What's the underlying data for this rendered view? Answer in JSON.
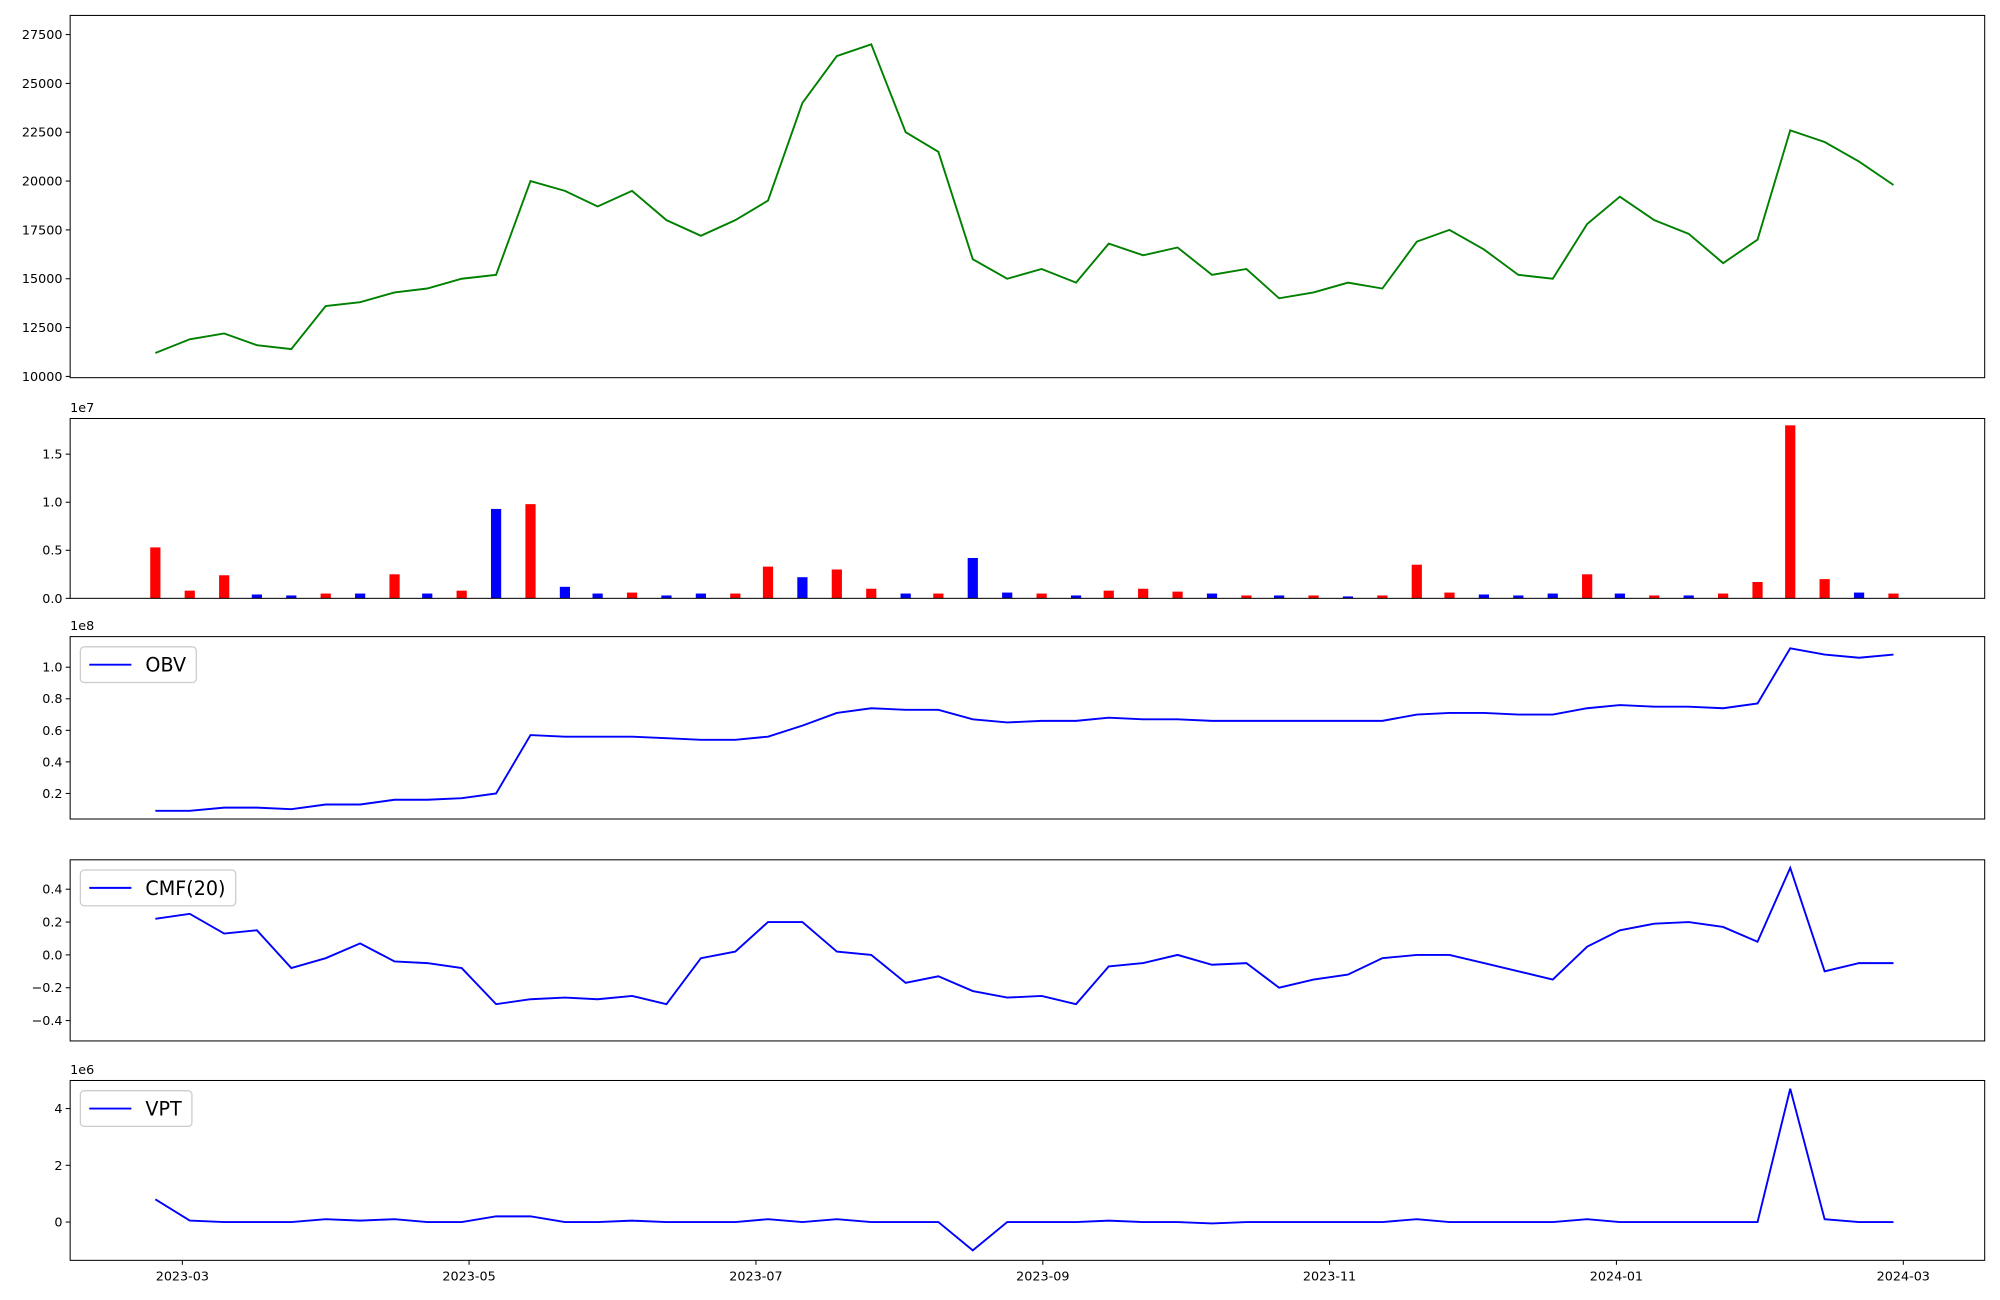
{
  "chart_data": [
    {
      "type": "line",
      "x": [
        2023.151,
        2023.171,
        2023.191,
        2023.21,
        2023.23,
        2023.25,
        2023.27,
        2023.29,
        2023.309,
        2023.329,
        2023.349,
        2023.369,
        2023.389,
        2023.408,
        2023.428,
        2023.448,
        2023.468,
        2023.488,
        2023.507,
        2023.527,
        2023.547,
        2023.567,
        2023.587,
        2023.606,
        2023.626,
        2023.646,
        2023.666,
        2023.686,
        2023.705,
        2023.725,
        2023.745,
        2023.765,
        2023.785,
        2023.804,
        2023.824,
        2023.844,
        2023.864,
        2023.884,
        2023.903,
        2023.923,
        2023.943,
        2023.963,
        2023.983,
        2024.002,
        2024.022,
        2024.042,
        2024.062,
        2024.082,
        2024.101,
        2024.121,
        2024.141,
        2024.161
      ],
      "series": [
        {
          "color": "green",
          "values": [
            11200,
            11900,
            12200,
            11600,
            11400,
            13600,
            13800,
            14300,
            14500,
            15000,
            15200,
            20000,
            19500,
            18700,
            19500,
            18000,
            17200,
            18000,
            19000,
            24000,
            26400,
            27000,
            22500,
            21500,
            16000,
            15000,
            15500,
            14800,
            16800,
            16200,
            16600,
            15200,
            15500,
            14000,
            14300,
            14800,
            14500,
            16900,
            17500,
            16500,
            15200,
            15000,
            17800,
            19200,
            18000,
            17300,
            15800,
            17000,
            22600,
            22000,
            21000,
            19800
          ]
        }
      ],
      "xlim": [
        2023.1015,
        2024.214
      ],
      "ylim": [
        9935,
        28480
      ],
      "yticks": [
        10000,
        12500,
        15000,
        17500,
        20000,
        22500,
        25000,
        27500
      ]
    },
    {
      "type": "bar",
      "x": [
        2023.151,
        2023.171,
        2023.191,
        2023.21,
        2023.23,
        2023.25,
        2023.27,
        2023.29,
        2023.309,
        2023.329,
        2023.349,
        2023.369,
        2023.389,
        2023.408,
        2023.428,
        2023.448,
        2023.468,
        2023.488,
        2023.507,
        2023.527,
        2023.547,
        2023.567,
        2023.587,
        2023.606,
        2023.626,
        2023.646,
        2023.666,
        2023.686,
        2023.705,
        2023.725,
        2023.745,
        2023.765,
        2023.785,
        2023.804,
        2023.824,
        2023.844,
        2023.864,
        2023.884,
        2023.903,
        2023.923,
        2023.943,
        2023.963,
        2023.983,
        2024.002,
        2024.022,
        2024.042,
        2024.062,
        2024.082,
        2024.101,
        2024.121,
        2024.141,
        2024.161
      ],
      "values": [
        0.53,
        0.08,
        0.24,
        0.04,
        0.03,
        0.05,
        0.05,
        0.25,
        0.05,
        0.08,
        0.93,
        0.98,
        0.12,
        0.05,
        0.06,
        0.03,
        0.05,
        0.05,
        0.33,
        0.22,
        0.3,
        0.1,
        0.05,
        0.05,
        0.42,
        0.06,
        0.05,
        0.03,
        0.08,
        0.1,
        0.07,
        0.05,
        0.03,
        0.03,
        0.03,
        0.02,
        0.03,
        0.35,
        0.06,
        0.04,
        0.03,
        0.05,
        0.25,
        0.05,
        0.03,
        0.03,
        0.05,
        0.17,
        1.8,
        0.2,
        0.06,
        0.05
      ],
      "colors": [
        "red",
        "red",
        "red",
        "blue",
        "blue",
        "red",
        "blue",
        "red",
        "blue",
        "red",
        "blue",
        "red",
        "blue",
        "blue",
        "red",
        "blue",
        "blue",
        "red",
        "red",
        "blue",
        "red",
        "red",
        "blue",
        "red",
        "blue",
        "blue",
        "red",
        "blue",
        "red",
        "red",
        "red",
        "blue",
        "red",
        "blue",
        "red",
        "blue",
        "red",
        "red",
        "red",
        "blue",
        "blue",
        "blue",
        "red",
        "blue",
        "red",
        "blue",
        "red",
        "red",
        "red",
        "red",
        "blue",
        "red"
      ],
      "offset_label": "1e7",
      "xlim": [
        2023.1015,
        2024.214
      ],
      "ylim": [
        0,
        1.871
      ],
      "yticks": [
        {
          "value": 0,
          "label": "0.0"
        },
        0.5,
        {
          "value": 1,
          "label": "1.0"
        },
        1.5
      ]
    },
    {
      "type": "line",
      "x": [
        2023.151,
        2023.171,
        2023.191,
        2023.21,
        2023.23,
        2023.25,
        2023.27,
        2023.29,
        2023.309,
        2023.329,
        2023.349,
        2023.369,
        2023.389,
        2023.408,
        2023.428,
        2023.448,
        2023.468,
        2023.488,
        2023.507,
        2023.527,
        2023.547,
        2023.567,
        2023.587,
        2023.606,
        2023.626,
        2023.646,
        2023.666,
        2023.686,
        2023.705,
        2023.725,
        2023.745,
        2023.765,
        2023.785,
        2023.804,
        2023.824,
        2023.844,
        2023.864,
        2023.884,
        2023.903,
        2023.923,
        2023.943,
        2023.963,
        2023.983,
        2024.002,
        2024.022,
        2024.042,
        2024.062,
        2024.082,
        2024.101,
        2024.121,
        2024.141,
        2024.161
      ],
      "series": [
        {
          "name": "OBV",
          "color": "blue",
          "values": [
            0.09,
            0.09,
            0.11,
            0.11,
            0.1,
            0.13,
            0.13,
            0.16,
            0.16,
            0.17,
            0.2,
            0.57,
            0.56,
            0.56,
            0.56,
            0.55,
            0.54,
            0.54,
            0.56,
            0.63,
            0.71,
            0.74,
            0.73,
            0.73,
            0.67,
            0.65,
            0.66,
            0.66,
            0.68,
            0.67,
            0.67,
            0.66,
            0.66,
            0.66,
            0.66,
            0.66,
            0.66,
            0.7,
            0.71,
            0.71,
            0.7,
            0.7,
            0.74,
            0.76,
            0.75,
            0.75,
            0.74,
            0.77,
            1.12,
            1.08,
            1.06,
            1.08
          ]
        }
      ],
      "offset_label": "1e8",
      "legend": "upper left",
      "xlim": [
        2023.1015,
        2024.214
      ],
      "ylim": [
        0.038,
        1.194
      ],
      "yticks": [
        0.2,
        0.4,
        0.6,
        0.8,
        {
          "value": 1,
          "label": "1.0"
        }
      ]
    },
    {
      "type": "line",
      "x": [
        2023.151,
        2023.171,
        2023.191,
        2023.21,
        2023.23,
        2023.25,
        2023.27,
        2023.29,
        2023.309,
        2023.329,
        2023.349,
        2023.369,
        2023.389,
        2023.408,
        2023.428,
        2023.448,
        2023.468,
        2023.488,
        2023.507,
        2023.527,
        2023.547,
        2023.567,
        2023.587,
        2023.606,
        2023.626,
        2023.646,
        2023.666,
        2023.686,
        2023.705,
        2023.725,
        2023.745,
        2023.765,
        2023.785,
        2023.804,
        2023.824,
        2023.844,
        2023.864,
        2023.884,
        2023.903,
        2023.923,
        2023.943,
        2023.963,
        2023.983,
        2024.002,
        2024.022,
        2024.042,
        2024.062,
        2024.082,
        2024.101,
        2024.121,
        2024.141,
        2024.161
      ],
      "series": [
        {
          "name": "CMF(20)",
          "color": "blue",
          "values": [
            0.22,
            0.25,
            0.13,
            0.15,
            -0.08,
            -0.02,
            0.07,
            -0.04,
            -0.05,
            -0.08,
            -0.3,
            -0.27,
            -0.26,
            -0.27,
            -0.25,
            -0.3,
            -0.02,
            0.02,
            0.2,
            0.2,
            0.02,
            0,
            -0.17,
            -0.13,
            -0.22,
            -0.26,
            -0.25,
            -0.3,
            -0.07,
            -0.05,
            0,
            -0.06,
            -0.05,
            -0.2,
            -0.15,
            -0.12,
            -0.02,
            0,
            0,
            -0.05,
            -0.1,
            -0.15,
            0.05,
            0.15,
            0.19,
            0.2,
            0.17,
            0.08,
            0.53,
            -0.1,
            -0.05,
            -0.05
          ]
        }
      ],
      "legend": "upper left",
      "xlim": [
        2023.1015,
        2024.214
      ],
      "ylim": [
        -0.524,
        0.579
      ],
      "yticks": [
        {
          "value": -0.4,
          "label": "−0.4"
        },
        {
          "value": -0.2,
          "label": "−0.2"
        },
        {
          "value": 0,
          "label": "0.0"
        },
        0.2,
        0.4
      ]
    },
    {
      "type": "line",
      "x": [
        2023.151,
        2023.171,
        2023.191,
        2023.21,
        2023.23,
        2023.25,
        2023.27,
        2023.29,
        2023.309,
        2023.329,
        2023.349,
        2023.369,
        2023.389,
        2023.408,
        2023.428,
        2023.448,
        2023.468,
        2023.488,
        2023.507,
        2023.527,
        2023.547,
        2023.567,
        2023.587,
        2023.606,
        2023.626,
        2023.646,
        2023.666,
        2023.686,
        2023.705,
        2023.725,
        2023.745,
        2023.765,
        2023.785,
        2023.804,
        2023.824,
        2023.844,
        2023.864,
        2023.884,
        2023.903,
        2023.923,
        2023.943,
        2023.963,
        2023.983,
        2024.002,
        2024.022,
        2024.042,
        2024.062,
        2024.082,
        2024.101,
        2024.121,
        2024.141,
        2024.161
      ],
      "series": [
        {
          "name": "VPT",
          "color": "blue",
          "values": [
            0.8,
            0.05,
            0,
            0,
            0,
            0.1,
            0.05,
            0.1,
            0,
            0,
            0.2,
            0.2,
            0,
            0,
            0.05,
            0,
            0,
            0,
            0.1,
            0,
            0.1,
            0,
            0,
            0,
            -1,
            0,
            0,
            0,
            0.05,
            0,
            0,
            -0.05,
            0,
            0,
            0,
            0,
            0,
            0.1,
            0,
            0,
            0,
            0,
            0.1,
            0,
            0,
            0,
            0,
            0,
            4.7,
            0.1,
            0,
            0
          ]
        }
      ],
      "offset_label": "1e6",
      "legend": "upper left",
      "xlim": [
        2023.1015,
        2024.214
      ],
      "ylim": [
        -1.35,
        4.99
      ],
      "yticks": [
        0,
        2,
        4
      ],
      "xticks": [
        {
          "value": 2023.1667,
          "label": "2023-03"
        },
        {
          "value": 2023.3333,
          "label": "2023-05"
        },
        {
          "value": 2023.5,
          "label": "2023-07"
        },
        {
          "value": 2023.6667,
          "label": "2023-09"
        },
        {
          "value": 2023.8333,
          "label": "2023-11"
        },
        {
          "value": 2024,
          "label": "2024-01"
        },
        {
          "value": 2024.1667,
          "label": "2024-03"
        }
      ]
    }
  ]
}
